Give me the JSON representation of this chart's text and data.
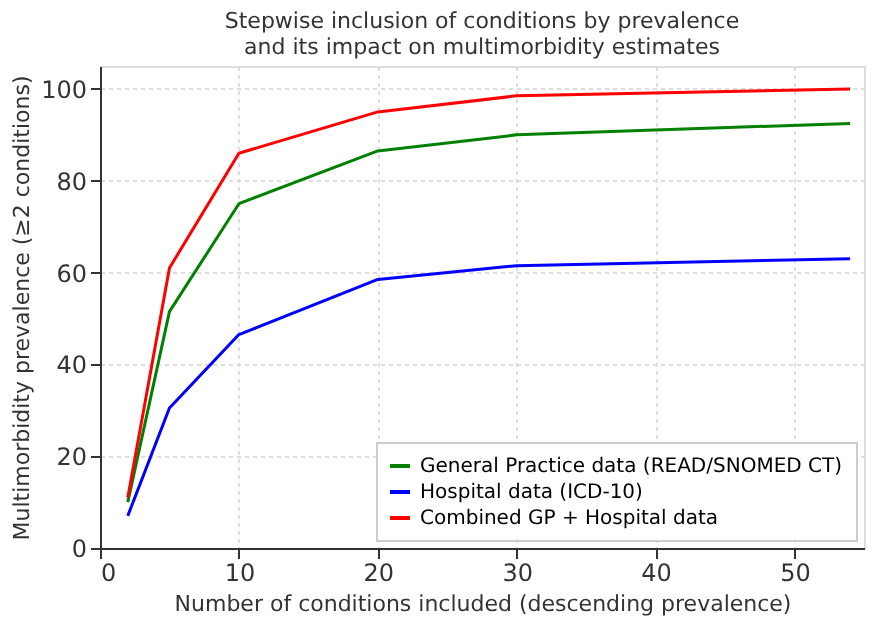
{
  "chart_data": {
    "type": "line",
    "title": "Stepwise inclusion of conditions by prevalence\nand its impact on multimorbidity estimates",
    "xlabel": "Number of conditions included (descending prevalence)",
    "ylabel": "Multimorbidity prevalence (≥2 conditions)",
    "x": [
      2,
      5,
      10,
      20,
      30,
      54
    ],
    "series": [
      {
        "name": "General Practice data (READ/SNOMED CT)",
        "color": "#008000",
        "values": [
          10,
          51.5,
          75,
          86.5,
          90,
          92.5
        ]
      },
      {
        "name": "Hospital data (ICD-10)",
        "color": "#0000ff",
        "values": [
          7,
          30.5,
          46.5,
          58.5,
          61.5,
          63
        ]
      },
      {
        "name": "Combined GP + Hospital data",
        "color": "#ff0000",
        "values": [
          11,
          61,
          86,
          95,
          98.5,
          100
        ]
      }
    ],
    "xlim": [
      0,
      55
    ],
    "xticks": [
      0,
      10,
      20,
      30,
      40,
      50
    ],
    "ylim": [
      0,
      105
    ],
    "yticks": [
      0,
      20,
      40,
      60,
      80,
      100
    ],
    "grid": true,
    "legend": "bottom right",
    "marker": "none",
    "line_style": "solid"
  }
}
